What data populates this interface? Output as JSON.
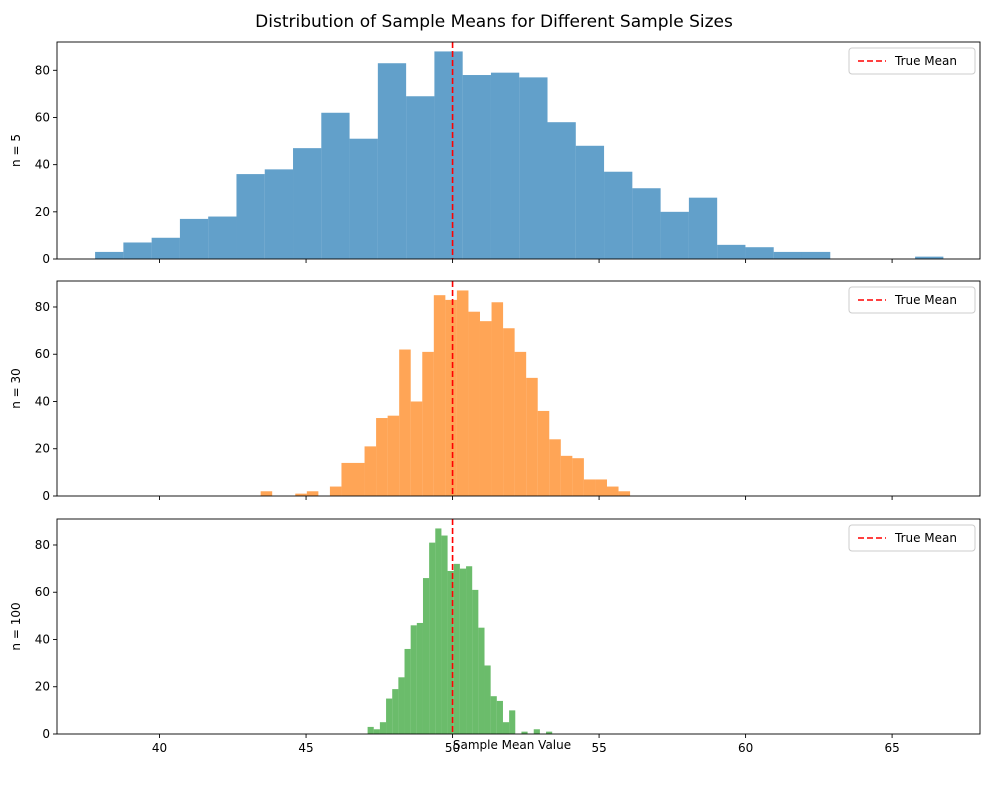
{
  "figure": {
    "title": "Distribution of Sample Means for Different Sample Sizes",
    "xlabel": "Sample Mean Value"
  },
  "colors": {
    "series": [
      "#1f77b4",
      "#ff7f0e",
      "#2ca02c"
    ],
    "true_mean_line": "#ff0000"
  },
  "chart_data": [
    {
      "type": "bar",
      "subtype": "histogram",
      "ylabel": "n = 5",
      "xlim": [
        36.5,
        68.0
      ],
      "ylim": [
        0,
        92
      ],
      "xticks": [
        40,
        45,
        50,
        55,
        60,
        65
      ],
      "yticks": [
        0,
        20,
        40,
        60,
        80
      ],
      "show_xtick_labels": false,
      "grid": false,
      "legend": {
        "position": "top-right",
        "label": "True Mean"
      },
      "true_mean": 50,
      "bin_start": 37.8,
      "bin_width": 0.965,
      "counts": [
        3,
        7,
        9,
        17,
        18,
        36,
        38,
        47,
        62,
        51,
        83,
        69,
        88,
        78,
        79,
        77,
        58,
        48,
        37,
        30,
        20,
        26,
        6,
        5,
        3,
        3,
        0,
        0,
        0,
        1
      ]
    },
    {
      "type": "bar",
      "subtype": "histogram",
      "ylabel": "n = 30",
      "xlim": [
        36.5,
        68.0
      ],
      "ylim": [
        0,
        91
      ],
      "xticks": [
        40,
        45,
        50,
        55,
        60,
        65
      ],
      "yticks": [
        0,
        20,
        40,
        60,
        80
      ],
      "show_xtick_labels": false,
      "grid": false,
      "legend": {
        "position": "top-right",
        "label": "True Mean"
      },
      "true_mean": 50,
      "bin_start": 43.45,
      "bin_width": 0.394,
      "counts": [
        2,
        0,
        0,
        1,
        2,
        0,
        4,
        14,
        14,
        21,
        33,
        34,
        62,
        40,
        61,
        85,
        83,
        87,
        78,
        74,
        82,
        71,
        61,
        50,
        36,
        24,
        17,
        16,
        7,
        7,
        4,
        2
      ]
    },
    {
      "type": "bar",
      "subtype": "histogram",
      "ylabel": "n = 100",
      "xlim": [
        36.5,
        68.0
      ],
      "ylim": [
        0,
        91
      ],
      "xticks": [
        40,
        45,
        50,
        55,
        60,
        65
      ],
      "yticks": [
        0,
        20,
        40,
        60,
        80
      ],
      "show_xtick_labels": true,
      "grid": false,
      "legend": {
        "position": "top-right",
        "label": "True Mean"
      },
      "true_mean": 50,
      "bin_start": 47.1,
      "bin_width": 0.21,
      "counts": [
        3,
        2,
        5,
        15,
        19,
        24,
        36,
        46,
        47,
        66,
        81,
        87,
        84,
        69,
        72,
        70,
        71,
        61,
        45,
        29,
        16,
        14,
        5,
        10,
        0,
        1,
        0,
        2,
        0,
        1
      ]
    }
  ]
}
